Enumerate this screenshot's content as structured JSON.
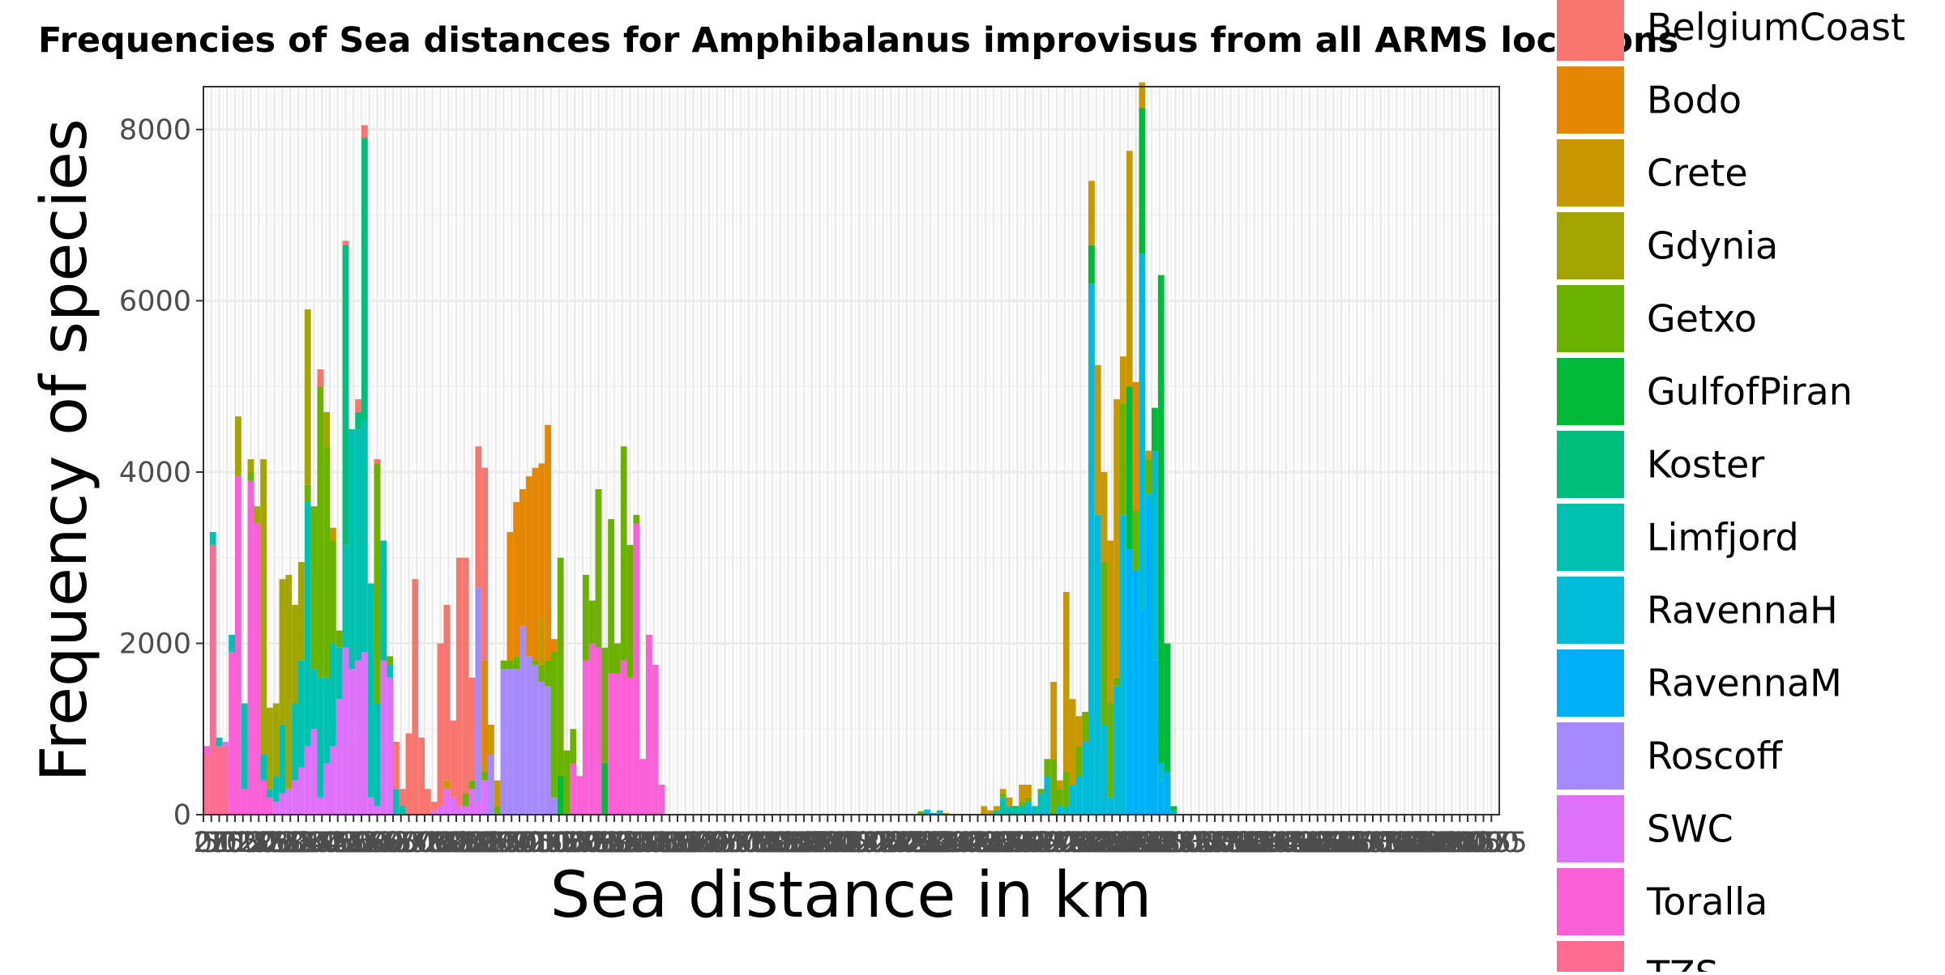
{
  "chart_data": {
    "type": "bar",
    "stacked": true,
    "title": "Frequencies of Sea distances for Amphibalanus improvisus from all ARMS locations",
    "xlabel": "Sea distance in km",
    "ylabel": "Frequency of species",
    "xlim": [
      0,
      4100
    ],
    "ylim": [
      0,
      8500
    ],
    "bin_width": 20,
    "grid": true,
    "legend_position": "right",
    "x_tick_labels": [
      "0",
      "25",
      "50",
      "75",
      "100",
      "125",
      "150",
      "175",
      "200",
      "225",
      "250",
      "275",
      "300",
      "325",
      "350",
      "375",
      "400",
      "425",
      "450",
      "475",
      "500",
      "525",
      "550",
      "575",
      "600",
      "625",
      "650",
      "675",
      "700",
      "725",
      "750",
      "775",
      "800",
      "825",
      "850",
      "875",
      "900",
      "925",
      "950",
      "975",
      "1000",
      "1025",
      "1050",
      "1075",
      "1100",
      "1125",
      "1150",
      "1175",
      "1200",
      "1225",
      "1250",
      "1275",
      "1300",
      "1325",
      "1350",
      "1375",
      "1400",
      "1425",
      "1450",
      "1475",
      "1500",
      "1525",
      "1550",
      "1575",
      "1600",
      "1625",
      "1650",
      "1675",
      "1700",
      "1725",
      "1750",
      "1775",
      "1800",
      "1825",
      "1850",
      "1875",
      "1900",
      "1925",
      "1950",
      "1975",
      "2000",
      "2025",
      "2050",
      "2075",
      "2100",
      "2125",
      "2150",
      "2175",
      "2200",
      "2225",
      "2250",
      "2275",
      "2300",
      "2325",
      "2350",
      "2375",
      "2400",
      "2425",
      "2450",
      "2475",
      "2500",
      "2525",
      "2550",
      "2575",
      "2600",
      "2625",
      "2650",
      "2675",
      "2700",
      "2725",
      "2750",
      "2775",
      "2800",
      "2825",
      "2850",
      "2875",
      "2900",
      "2925",
      "2950",
      "2975",
      "3000",
      "3025",
      "3050",
      "3075",
      "3100",
      "3125",
      "3150",
      "3175",
      "3200",
      "3225",
      "3250",
      "3275",
      "3300",
      "3325",
      "3350",
      "3375",
      "3400",
      "3425",
      "3450",
      "3475",
      "3500",
      "3525",
      "3550",
      "3575",
      "3600",
      "3625",
      "3650",
      "3675",
      "3700",
      "3725",
      "3750",
      "3775",
      "3800",
      "3825",
      "3850",
      "3875",
      "3900",
      "3925",
      "3950",
      "3975",
      "4000",
      "4025",
      "4050",
      "4075"
    ],
    "y_ticks": [
      0,
      2000,
      4000,
      6000,
      8000
    ],
    "series_names": [
      "BelgiumCoast",
      "Bodo",
      "Crete",
      "Gdynia",
      "Getxo",
      "GulfofPiran",
      "Koster",
      "Limfjord",
      "RavennaH",
      "RavennaM",
      "Roscoff",
      "SWC",
      "Toralla",
      "TZS"
    ],
    "series_colors": [
      "#F8766D",
      "#E58700",
      "#C99800",
      "#A3A500",
      "#6BB100",
      "#00BA38",
      "#00BF7D",
      "#00C0AF",
      "#00BCD8",
      "#00B0F6",
      "#A58AFF",
      "#DF70F8",
      "#FB61D7",
      "#FF6C91"
    ],
    "bins": [
      {
        "x": 0,
        "values": {
          "TZS": 700,
          "Toralla": 100
        }
      },
      {
        "x": 20,
        "values": {
          "TZS": 3150,
          "Limfjord": 150
        }
      },
      {
        "x": 40,
        "values": {
          "TZS": 800,
          "Limfjord": 100
        }
      },
      {
        "x": 60,
        "values": {
          "TZS": 800,
          "SWC": 50
        }
      },
      {
        "x": 80,
        "values": {
          "Toralla": 1900,
          "Limfjord": 200
        }
      },
      {
        "x": 100,
        "values": {
          "Toralla": 3950,
          "Gdynia": 700
        }
      },
      {
        "x": 120,
        "values": {
          "Toralla": 300,
          "Limfjord": 1000
        }
      },
      {
        "x": 140,
        "values": {
          "Toralla": 3900,
          "Getxo": 100,
          "Gdynia": 150
        }
      },
      {
        "x": 160,
        "values": {
          "Toralla": 3400,
          "Gdynia": 200
        }
      },
      {
        "x": 180,
        "values": {
          "Toralla": 400,
          "Limfjord": 300,
          "Gdynia": 3450
        }
      },
      {
        "x": 200,
        "values": {
          "Toralla": 200,
          "Limfjord": 100,
          "Gdynia": 950
        }
      },
      {
        "x": 220,
        "values": {
          "SWC": 150,
          "Limfjord": 300,
          "Gdynia": 850
        }
      },
      {
        "x": 240,
        "values": {
          "SWC": 250,
          "Limfjord": 800,
          "Gdynia": 1700
        }
      },
      {
        "x": 260,
        "values": {
          "SWC": 300,
          "Gdynia": 2500
        }
      },
      {
        "x": 280,
        "values": {
          "SWC": 400,
          "Limfjord": 900,
          "Gdynia": 1150
        }
      },
      {
        "x": 300,
        "values": {
          "SWC": 550,
          "Limfjord": 1250,
          "Gdynia": 1150
        }
      },
      {
        "x": 320,
        "values": {
          "SWC": 800,
          "Limfjord": 2850,
          "Getxo": 200,
          "Gdynia": 2050
        }
      },
      {
        "x": 340,
        "values": {
          "SWC": 1000,
          "Limfjord": 700,
          "Getxo": 1900
        }
      },
      {
        "x": 360,
        "values": {
          "SWC": 200,
          "Limfjord": 1400,
          "Getxo": 3400,
          "BelgiumCoast": 200
        }
      },
      {
        "x": 380,
        "values": {
          "SWC": 600,
          "Limfjord": 1000,
          "Getxo": 2700,
          "Gdynia": 400
        }
      },
      {
        "x": 400,
        "values": {
          "SWC": 800,
          "Limfjord": 1200,
          "Getxo": 1200,
          "Crete": 150
        }
      },
      {
        "x": 420,
        "values": {
          "SWC": 1350,
          "Limfjord": 600,
          "Getxo": 200
        }
      },
      {
        "x": 440,
        "values": {
          "SWC": 1950,
          "Limfjord": 1200,
          "Koster": 3500,
          "BelgiumCoast": 50
        }
      },
      {
        "x": 460,
        "values": {
          "SWC": 1700,
          "Limfjord": 2800
        }
      },
      {
        "x": 480,
        "values": {
          "SWC": 1800,
          "Limfjord": 2700,
          "Koster": 200,
          "BelgiumCoast": 150
        }
      },
      {
        "x": 500,
        "values": {
          "SWC": 1900,
          "Limfjord": 2700,
          "Koster": 3300,
          "BelgiumCoast": 150
        }
      },
      {
        "x": 520,
        "values": {
          "SWC": 200,
          "Limfjord": 2500
        }
      },
      {
        "x": 540,
        "values": {
          "SWC": 100,
          "Limfjord": 1200,
          "Getxo": 2800,
          "BelgiumCoast": 50
        }
      },
      {
        "x": 560,
        "values": {
          "SWC": 1800,
          "Limfjord": 1400
        }
      },
      {
        "x": 580,
        "values": {
          "SWC": 1600,
          "Limfjord": 150,
          "Getxo": 100
        }
      },
      {
        "x": 600,
        "values": {
          "Limfjord": 300,
          "BelgiumCoast": 550
        }
      },
      {
        "x": 620,
        "values": {
          "Limfjord": 100,
          "BelgiumCoast": 200
        }
      },
      {
        "x": 640,
        "values": {
          "BelgiumCoast": 950
        }
      },
      {
        "x": 660,
        "values": {
          "BelgiumCoast": 2750
        }
      },
      {
        "x": 680,
        "values": {
          "BelgiumCoast": 900
        }
      },
      {
        "x": 700,
        "values": {
          "BelgiumCoast": 300
        }
      },
      {
        "x": 720,
        "values": {
          "SWC": 50,
          "BelgiumCoast": 100
        }
      },
      {
        "x": 740,
        "values": {
          "SWC": 100,
          "BelgiumCoast": 1900
        }
      },
      {
        "x": 760,
        "values": {
          "SWC": 300,
          "Crete": 100,
          "BelgiumCoast": 2050
        }
      },
      {
        "x": 780,
        "values": {
          "SWC": 200,
          "BelgiumCoast": 900
        }
      },
      {
        "x": 800,
        "values": {
          "SWC": 100,
          "BelgiumCoast": 2900
        }
      },
      {
        "x": 820,
        "values": {
          "SWC": 100,
          "Getxo": 150,
          "BelgiumCoast": 2750
        }
      },
      {
        "x": 840,
        "values": {
          "SWC": 300,
          "Getxo": 100,
          "BelgiumCoast": 1200
        }
      },
      {
        "x": 860,
        "values": {
          "SWC": 150,
          "Roscoff": 2500,
          "BelgiumCoast": 1650
        }
      },
      {
        "x": 880,
        "values": {
          "SWC": 400,
          "Getxo": 100,
          "Crete": 100,
          "Bodo": 1200,
          "BelgiumCoast": 2250
        }
      },
      {
        "x": 900,
        "values": {
          "Roscoff": 700,
          "Crete": 350
        }
      },
      {
        "x": 920,
        "values": {
          "Getxo": 100,
          "Crete": 300
        }
      },
      {
        "x": 940,
        "values": {
          "Roscoff": 1700,
          "Getxo": 100
        }
      },
      {
        "x": 960,
        "values": {
          "Roscoff": 1700,
          "Getxo": 100,
          "Bodo": 1500
        }
      },
      {
        "x": 980,
        "values": {
          "Roscoff": 1700,
          "Getxo": 150,
          "Bodo": 1800
        }
      },
      {
        "x": 1000,
        "values": {
          "Roscoff": 2200,
          "Bodo": 1600
        }
      },
      {
        "x": 1020,
        "values": {
          "Roscoff": 1850,
          "Bodo": 2100
        }
      },
      {
        "x": 1040,
        "values": {
          "Roscoff": 1750,
          "Getxo": 50,
          "Bodo": 2250
        }
      },
      {
        "x": 1060,
        "values": {
          "Roscoff": 1550,
          "Getxo": 200,
          "Crete": 550,
          "Bodo": 1800
        }
      },
      {
        "x": 1080,
        "values": {
          "Roscoff": 1500,
          "Getxo": 300,
          "Bodo": 2750
        }
      },
      {
        "x": 1100,
        "values": {
          "Roscoff": 200,
          "Getxo": 1700,
          "Bodo": 150
        }
      },
      {
        "x": 1120,
        "values": {
          "GulfofPiran": 450,
          "Getxo": 2550
        }
      },
      {
        "x": 1140,
        "values": {
          "Getxo": 750
        }
      },
      {
        "x": 1160,
        "values": {
          "Toralla": 600,
          "Getxo": 400
        }
      },
      {
        "x": 1180,
        "values": {
          "Toralla": 450
        }
      },
      {
        "x": 1200,
        "values": {
          "Toralla": 1800,
          "Getxo": 1000
        }
      },
      {
        "x": 1220,
        "values": {
          "Toralla": 2000,
          "Getxo": 500
        }
      },
      {
        "x": 1240,
        "values": {
          "Toralla": 1950,
          "Getxo": 1850
        }
      },
      {
        "x": 1260,
        "values": {
          "GulfofPiran": 600,
          "Getxo": 1350
        }
      },
      {
        "x": 1280,
        "values": {
          "Toralla": 1650,
          "Getxo": 1800
        }
      },
      {
        "x": 1300,
        "values": {
          "Toralla": 1650,
          "Getxo": 350
        }
      },
      {
        "x": 1320,
        "values": {
          "Toralla": 1800,
          "Getxo": 2500
        }
      },
      {
        "x": 1340,
        "values": {
          "Toralla": 1600,
          "Getxo": 1550
        }
      },
      {
        "x": 1360,
        "values": {
          "Toralla": 3400,
          "Getxo": 100
        }
      },
      {
        "x": 1380,
        "values": {
          "Toralla": 650
        }
      },
      {
        "x": 1400,
        "values": {
          "Toralla": 2100
        }
      },
      {
        "x": 1420,
        "values": {
          "Toralla": 1750
        }
      },
      {
        "x": 1440,
        "values": {
          "Toralla": 350
        }
      },
      {
        "x": 2260,
        "values": {
          "Getxo": 40
        }
      },
      {
        "x": 2280,
        "values": {
          "RavennaM": 30,
          "RavennaH": 30
        }
      },
      {
        "x": 2300,
        "values": {
          "RavennaM": 20
        }
      },
      {
        "x": 2320,
        "values": {
          "Limfjord": 30,
          "RavennaH": 20
        }
      },
      {
        "x": 2340,
        "values": {
          "Crete": 20
        }
      },
      {
        "x": 2460,
        "values": {
          "Crete": 100
        }
      },
      {
        "x": 2480,
        "values": {
          "Crete": 50
        }
      },
      {
        "x": 2500,
        "values": {
          "Limfjord": 50,
          "Crete": 50
        }
      },
      {
        "x": 2520,
        "values": {
          "Limfjord": 200,
          "Getxo": 50,
          "Crete": 50
        }
      },
      {
        "x": 2540,
        "values": {
          "Limfjord": 100,
          "Crete": 100
        }
      },
      {
        "x": 2560,
        "values": {
          "Limfjord": 80,
          "GulfofPiran": 20
        }
      },
      {
        "x": 2580,
        "values": {
          "Limfjord": 100,
          "Getxo": 50,
          "Crete": 200
        }
      },
      {
        "x": 2600,
        "values": {
          "RavennaH": 150,
          "Getxo": 50,
          "Crete": 150
        }
      },
      {
        "x": 2620,
        "values": {
          "Limfjord": 100
        }
      },
      {
        "x": 2640,
        "values": {
          "Limfjord": 200,
          "RavennaH": 50,
          "Getxo": 50
        }
      },
      {
        "x": 2660,
        "values": {
          "RavennaH": 450,
          "Getxo": 200
        }
      },
      {
        "x": 2680,
        "values": {
          "Getxo": 650,
          "Crete": 900
        }
      },
      {
        "x": 2700,
        "values": {
          "RavennaH": 100,
          "Getxo": 200,
          "Crete": 100
        }
      },
      {
        "x": 2720,
        "values": {
          "Limfjord": 100,
          "Getxo": 400,
          "Crete": 2100
        }
      },
      {
        "x": 2740,
        "values": {
          "RavennaH": 350,
          "Crete": 1000
        }
      },
      {
        "x": 2760,
        "values": {
          "RavennaH": 450,
          "Getxo": 350,
          "Crete": 350
        }
      },
      {
        "x": 2780,
        "values": {
          "RavennaH": 850,
          "Getxo": 350
        }
      },
      {
        "x": 2800,
        "values": {
          "RavennaH": 6200,
          "GulfofPiran": 450,
          "Crete": 750
        }
      },
      {
        "x": 2820,
        "values": {
          "RavennaH": 3500,
          "Crete": 1750
        }
      },
      {
        "x": 2840,
        "values": {
          "RavennaH": 1050,
          "Getxo": 1900,
          "Crete": 1050
        }
      },
      {
        "x": 2860,
        "values": {
          "RavennaH": 200,
          "Getxo": 1100,
          "Crete": 1900
        }
      },
      {
        "x": 2880,
        "values": {
          "RavennaH": 1500,
          "Getxo": 100,
          "Crete": 3250
        }
      },
      {
        "x": 2900,
        "values": {
          "RavennaH": 3500,
          "Getxo": 1300,
          "Crete": 550
        }
      },
      {
        "x": 2920,
        "values": {
          "RavennaM": 3100,
          "GulfofPiran": 1900,
          "Crete": 2750
        }
      },
      {
        "x": 2940,
        "values": {
          "RavennaM": 2850,
          "Getxo": 700,
          "Bodo": 1500
        }
      },
      {
        "x": 2960,
        "values": {
          "RavennaM": 2400,
          "RavennaH": 4150,
          "GulfofPiran": 1700,
          "Crete": 300
        }
      },
      {
        "x": 2980,
        "values": {
          "RavennaM": 3650,
          "RavennaH": 100,
          "Getxo": 400,
          "Crete": 100
        }
      },
      {
        "x": 3000,
        "values": {
          "RavennaM": 1800,
          "RavennaH": 2450,
          "GulfofPiran": 500
        }
      },
      {
        "x": 3020,
        "values": {
          "RavennaM": 400,
          "RavennaH": 200,
          "GulfofPiran": 5700
        }
      },
      {
        "x": 3040,
        "values": {
          "RavennaM": 500,
          "GulfofPiran": 1500
        }
      },
      {
        "x": 3060,
        "values": {
          "Limfjord": 50,
          "GulfofPiran": 50
        }
      }
    ]
  }
}
